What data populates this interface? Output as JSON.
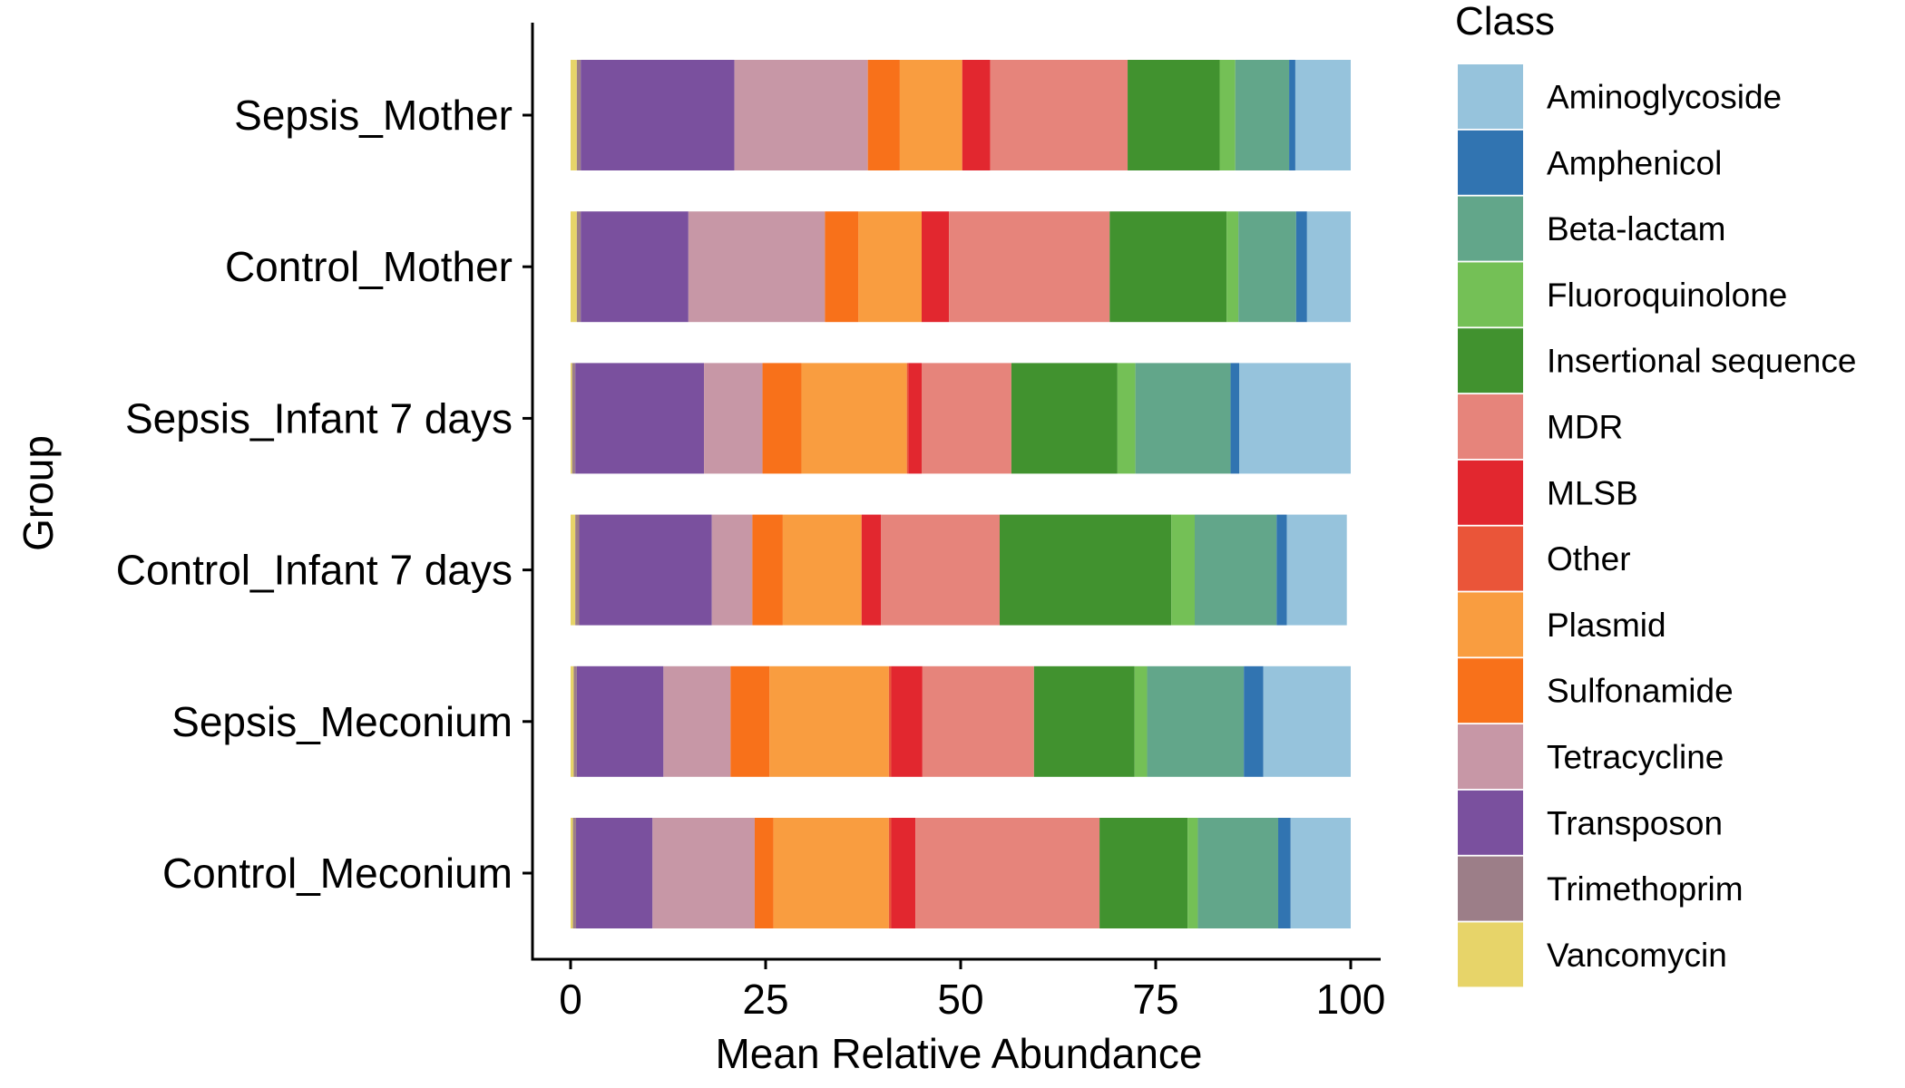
{
  "chart_data": {
    "type": "bar",
    "orientation": "horizontal",
    "stacked": true,
    "title": "",
    "xlabel": "Mean Relative Abundance",
    "ylabel": "Group",
    "xlim": [
      0,
      100
    ],
    "x_ticks": [
      0,
      25,
      50,
      75,
      100
    ],
    "grid": false,
    "legend_title": "Class",
    "legend_position": "right",
    "categories": [
      "Sepsis_Mother",
      "Control_Mother",
      "Sepsis_Infant 7 days",
      "Control_Infant 7 days",
      "Sepsis_Meconium",
      "Control_Meconium"
    ],
    "stack_order": [
      "Vancomycin",
      "Trimethoprim",
      "Transposon",
      "Tetracycline",
      "Sulfonamide",
      "Plasmid",
      "Other",
      "MLSB",
      "MDR",
      "Insertional sequence",
      "Fluoroquinolone",
      "Beta-lactam",
      "Amphenicol",
      "Aminoglycoside"
    ],
    "series": [
      {
        "name": "Aminoglycoside",
        "color": "#96c3dc",
        "values": [
          7.1,
          5.6,
          14.3,
          7.7,
          11.2,
          7.7
        ]
      },
      {
        "name": "Amphenicol",
        "color": "#3174b1",
        "values": [
          0.8,
          1.4,
          1.1,
          1.3,
          2.5,
          1.6
        ]
      },
      {
        "name": "Beta-lactam",
        "color": "#62a68a",
        "values": [
          6.9,
          7.4,
          12.2,
          10.5,
          12.4,
          10.3
        ]
      },
      {
        "name": "Fluoroquinolone",
        "color": "#74c056",
        "values": [
          2.0,
          1.5,
          2.3,
          3.0,
          1.6,
          1.3
        ]
      },
      {
        "name": "Insertional sequence",
        "color": "#41922f",
        "values": [
          11.8,
          15.0,
          13.6,
          22.0,
          12.9,
          11.3
        ]
      },
      {
        "name": "MDR",
        "color": "#e6847b",
        "values": [
          17.6,
          20.6,
          11.5,
          15.2,
          14.3,
          23.6
        ]
      },
      {
        "name": "MLSB",
        "color": "#e2272f",
        "values": [
          3.6,
          3.5,
          1.7,
          2.5,
          4.0,
          3.1
        ]
      },
      {
        "name": "Other",
        "color": "#ea5539",
        "values": [
          0.0,
          0.0,
          0.2,
          0.0,
          0.3,
          0.3
        ]
      },
      {
        "name": "Plasmid",
        "color": "#f99d40",
        "values": [
          8.0,
          8.1,
          13.5,
          10.1,
          15.3,
          14.8
        ]
      },
      {
        "name": "Sulfonamide",
        "color": "#f8711a",
        "values": [
          4.1,
          4.3,
          5.0,
          3.9,
          5.0,
          2.4
        ]
      },
      {
        "name": "Tetracycline",
        "color": "#c797a6",
        "values": [
          17.1,
          17.5,
          7.5,
          5.2,
          8.6,
          13.1
        ]
      },
      {
        "name": "Transposon",
        "color": "#7a509e",
        "values": [
          19.7,
          13.8,
          16.5,
          17.0,
          11.1,
          9.8
        ]
      },
      {
        "name": "Trimethoprim",
        "color": "#9c7e88",
        "values": [
          0.5,
          0.5,
          0.4,
          0.5,
          0.4,
          0.4
        ]
      },
      {
        "name": "Vancomycin",
        "color": "#e7d469",
        "values": [
          0.8,
          0.8,
          0.2,
          0.6,
          0.4,
          0.3
        ]
      }
    ]
  }
}
